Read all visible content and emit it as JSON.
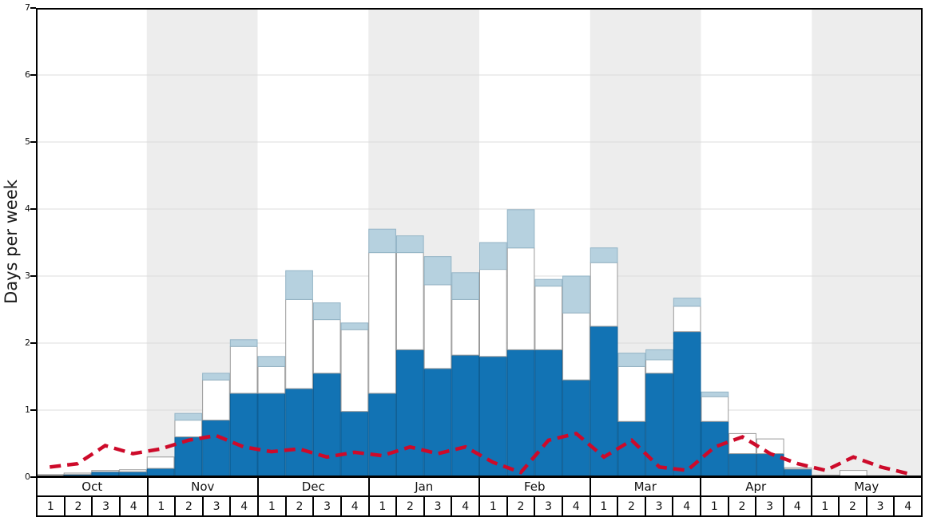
{
  "chart_data": {
    "type": "bar",
    "title": "",
    "ylabel": "Days per week",
    "ylim": [
      0,
      7
    ],
    "yticks": [
      "0",
      "1",
      "2",
      "3",
      "4",
      "5",
      "6",
      "7"
    ],
    "grid": true,
    "legend": "none",
    "months": [
      "Oct",
      "Nov",
      "Dec",
      "Jan",
      "Feb",
      "Mar",
      "Apr",
      "May"
    ],
    "week_labels": [
      "1",
      "2",
      "3",
      "4"
    ],
    "shaded_month_indices": [
      1,
      3,
      5,
      7
    ],
    "series": [
      {
        "name": "dark-blue-bars",
        "color": "#1273b4",
        "stroke": "#0e5f96",
        "values": [
          0.02,
          0.04,
          0.08,
          0.08,
          0.13,
          0.6,
          0.85,
          1.25,
          1.25,
          1.32,
          1.55,
          0.98,
          1.25,
          1.9,
          1.62,
          1.82,
          1.8,
          1.9,
          1.9,
          1.45,
          2.25,
          0.83,
          1.55,
          2.17,
          0.83,
          0.35,
          0.35,
          0.12,
          0.0,
          0.0,
          0.0,
          0.0
        ]
      },
      {
        "name": "white-bars",
        "color": "#ffffff",
        "stroke": "#9a9a9a",
        "values": [
          0.02,
          0.02,
          0.02,
          0.03,
          0.17,
          0.25,
          0.6,
          0.7,
          0.4,
          1.33,
          0.8,
          1.22,
          2.1,
          1.45,
          1.25,
          0.83,
          1.3,
          1.52,
          0.95,
          1.0,
          0.95,
          0.82,
          0.2,
          0.38,
          0.37,
          0.3,
          0.22,
          0.02,
          0.03,
          0.1,
          0.02,
          0.0
        ]
      },
      {
        "name": "light-blue-bars",
        "color": "#b6d1df",
        "stroke": "#93b4c6",
        "values": [
          0.0,
          0.0,
          0.0,
          0.0,
          0.0,
          0.1,
          0.1,
          0.1,
          0.15,
          0.43,
          0.25,
          0.1,
          0.35,
          0.25,
          0.42,
          0.4,
          0.4,
          0.57,
          0.1,
          0.55,
          0.22,
          0.2,
          0.15,
          0.12,
          0.07,
          0.0,
          0.0,
          0.0,
          0.0,
          0.0,
          0.0,
          0.0
        ]
      }
    ],
    "line_series": {
      "name": "red-dashed-line",
      "color": "#cd0a2a",
      "values": [
        0.15,
        0.2,
        0.47,
        0.35,
        0.42,
        0.55,
        0.62,
        0.45,
        0.38,
        0.42,
        0.3,
        0.37,
        0.32,
        0.45,
        0.35,
        0.45,
        0.22,
        0.07,
        0.55,
        0.65,
        0.3,
        0.55,
        0.15,
        0.1,
        0.45,
        0.6,
        0.35,
        0.2,
        0.1,
        0.3,
        0.15,
        0.05
      ]
    },
    "colors": {
      "band": "#ededed",
      "grid": "#dcdcdc",
      "frame": "#000000",
      "background": "#ffffff"
    }
  }
}
